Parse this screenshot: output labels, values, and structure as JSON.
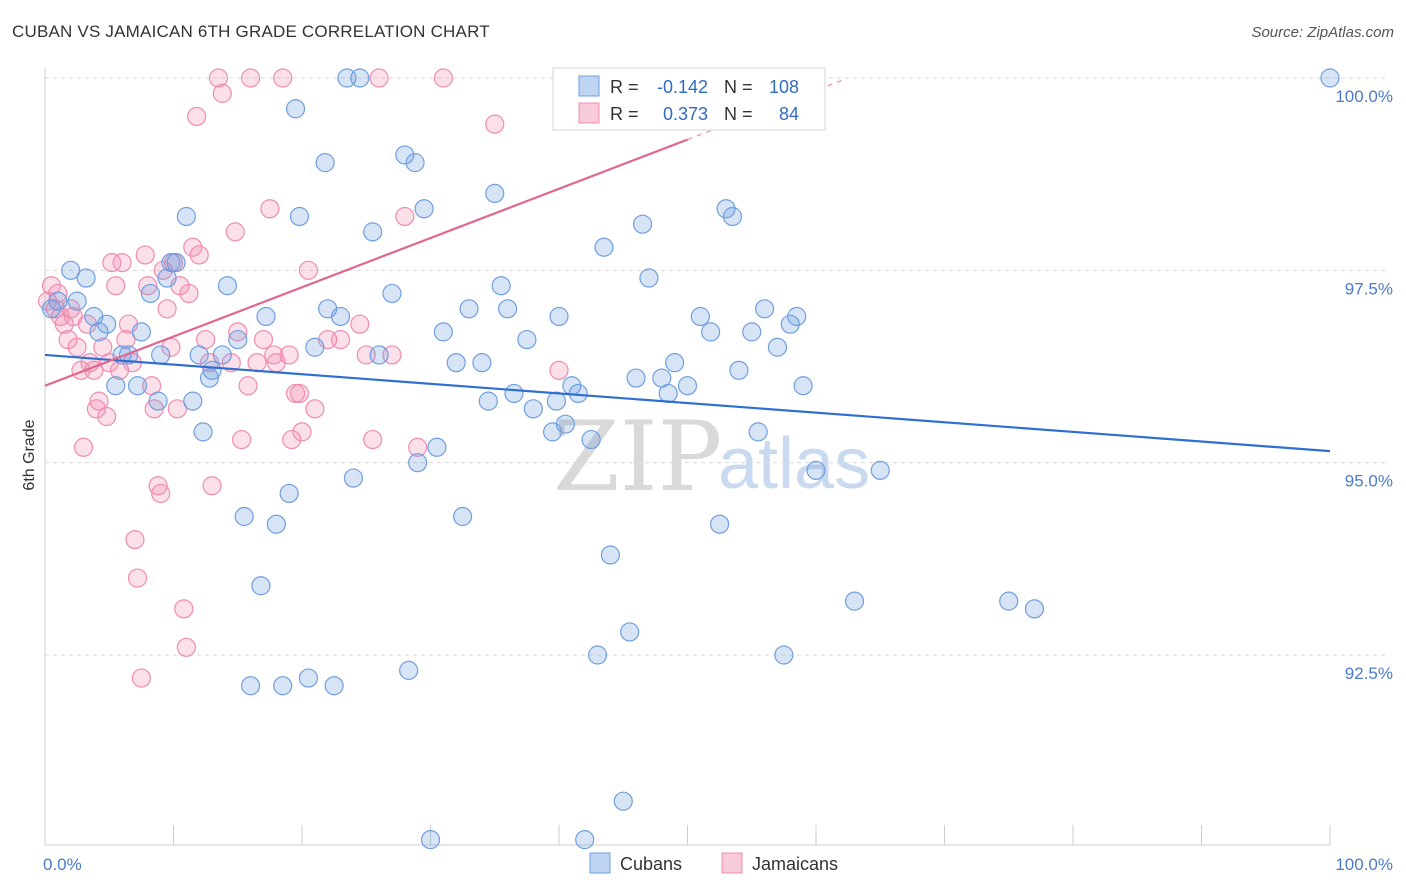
{
  "header": {
    "title": "CUBAN VS JAMAICAN 6TH GRADE CORRELATION CHART",
    "source": "Source: ZipAtlas.com"
  },
  "colors": {
    "cubans": "#6f9fe0",
    "cubans_line": "#2f6fd0",
    "jamaicans": "#f08cb0",
    "jamaicans_line": "#e06890",
    "axis_text": "#4a7cc9",
    "grid": "#d8d8d8"
  },
  "legend_box": {
    "row1": {
      "r_label": "R =",
      "r_value": "-0.142",
      "n_label": "N =",
      "n_value": "108"
    },
    "row2": {
      "r_label": "R =",
      "r_value": "0.373",
      "n_label": "N =",
      "n_value": "84"
    }
  },
  "watermark": {
    "zip": "ZIP",
    "atlas": "atlas"
  },
  "chart_data": {
    "type": "scatter",
    "title": "CUBAN VS JAMAICAN 6TH GRADE CORRELATION CHART",
    "xlabel": "",
    "ylabel": "6th Grade",
    "xlim": [
      0,
      100
    ],
    "ylim": [
      90.2,
      100.3
    ],
    "x_tick_labels": [
      "0.0%",
      "100.0%"
    ],
    "y_ticks": [
      92.5,
      95.0,
      97.5,
      100.0
    ],
    "y_tick_labels": [
      "92.5%",
      "95.0%",
      "97.5%",
      "100.0%"
    ],
    "grid": true,
    "legend": [
      "Cubans",
      "Jamaicans"
    ],
    "series": [
      {
        "name": "Cubans",
        "trend": {
          "x": [
            0,
            100
          ],
          "y": [
            96.4,
            95.15
          ]
        },
        "points": [
          [
            0.5,
            97.0
          ],
          [
            1.0,
            97.1
          ],
          [
            2.0,
            97.5
          ],
          [
            2.5,
            97.1
          ],
          [
            3.2,
            97.4
          ],
          [
            3.8,
            96.9
          ],
          [
            4.2,
            96.7
          ],
          [
            4.8,
            96.8
          ],
          [
            5.5,
            96.0
          ],
          [
            6.0,
            96.4
          ],
          [
            6.5,
            96.4
          ],
          [
            7.2,
            96.0
          ],
          [
            7.5,
            96.7
          ],
          [
            8.2,
            97.2
          ],
          [
            8.8,
            95.8
          ],
          [
            9.0,
            96.4
          ],
          [
            9.5,
            97.4
          ],
          [
            9.8,
            97.6
          ],
          [
            10.2,
            97.6
          ],
          [
            11.0,
            98.2
          ],
          [
            11.5,
            95.8
          ],
          [
            12.0,
            96.4
          ],
          [
            12.3,
            95.4
          ],
          [
            12.8,
            96.1
          ],
          [
            13.0,
            96.2
          ],
          [
            13.8,
            96.4
          ],
          [
            14.2,
            97.3
          ],
          [
            15.0,
            96.6
          ],
          [
            15.5,
            94.3
          ],
          [
            16.0,
            92.1
          ],
          [
            16.8,
            93.4
          ],
          [
            17.2,
            96.9
          ],
          [
            18.0,
            94.2
          ],
          [
            18.5,
            92.1
          ],
          [
            19.0,
            94.6
          ],
          [
            19.5,
            99.6
          ],
          [
            19.8,
            98.2
          ],
          [
            20.5,
            92.2
          ],
          [
            21.0,
            96.5
          ],
          [
            21.8,
            98.9
          ],
          [
            22.0,
            97.0
          ],
          [
            22.5,
            92.1
          ],
          [
            23.0,
            96.9
          ],
          [
            23.5,
            100.0
          ],
          [
            24.0,
            94.8
          ],
          [
            24.5,
            100.0
          ],
          [
            25.5,
            98.0
          ],
          [
            26.0,
            96.4
          ],
          [
            27.0,
            97.2
          ],
          [
            28.0,
            99.0
          ],
          [
            28.3,
            92.3
          ],
          [
            28.8,
            98.9
          ],
          [
            29.0,
            95.0
          ],
          [
            29.5,
            98.3
          ],
          [
            30.5,
            95.2
          ],
          [
            30.0,
            90.1
          ],
          [
            31.0,
            96.7
          ],
          [
            32.0,
            96.3
          ],
          [
            32.5,
            94.3
          ],
          [
            33.0,
            97.0
          ],
          [
            34.0,
            96.3
          ],
          [
            34.5,
            95.8
          ],
          [
            35.0,
            98.5
          ],
          [
            35.5,
            97.3
          ],
          [
            36.0,
            97.0
          ],
          [
            36.5,
            95.9
          ],
          [
            37.5,
            96.6
          ],
          [
            38.0,
            95.7
          ],
          [
            39.5,
            95.4
          ],
          [
            39.8,
            95.8
          ],
          [
            40.0,
            96.9
          ],
          [
            40.5,
            95.5
          ],
          [
            41.0,
            96.0
          ],
          [
            41.5,
            95.9
          ],
          [
            42.0,
            90.1
          ],
          [
            42.5,
            95.3
          ],
          [
            43.0,
            92.5
          ],
          [
            43.5,
            97.8
          ],
          [
            44.0,
            93.8
          ],
          [
            45.0,
            90.6
          ],
          [
            45.5,
            92.8
          ],
          [
            46.0,
            96.1
          ],
          [
            46.5,
            98.1
          ],
          [
            47.0,
            97.4
          ],
          [
            48.0,
            96.1
          ],
          [
            48.5,
            95.9
          ],
          [
            49.0,
            96.3
          ],
          [
            50.0,
            96.0
          ],
          [
            51.0,
            96.9
          ],
          [
            51.8,
            96.7
          ],
          [
            52.5,
            94.2
          ],
          [
            53.0,
            98.3
          ],
          [
            53.5,
            98.2
          ],
          [
            54.0,
            96.2
          ],
          [
            55.0,
            96.7
          ],
          [
            55.5,
            95.4
          ],
          [
            56.0,
            97.0
          ],
          [
            57.0,
            96.5
          ],
          [
            57.5,
            92.5
          ],
          [
            58.0,
            96.8
          ],
          [
            58.5,
            96.9
          ],
          [
            59.0,
            96.0
          ],
          [
            60.0,
            94.9
          ],
          [
            63.0,
            93.2
          ],
          [
            65.0,
            94.9
          ],
          [
            75.0,
            93.2
          ],
          [
            77.0,
            93.1
          ],
          [
            100.0,
            100.0
          ]
        ]
      },
      {
        "name": "Jamaicans",
        "trend": {
          "x": [
            0,
            50
          ],
          "y": [
            96.0,
            99.2
          ]
        },
        "points": [
          [
            0.2,
            97.1
          ],
          [
            0.5,
            97.3
          ],
          [
            0.8,
            97.0
          ],
          [
            1.0,
            97.2
          ],
          [
            1.2,
            96.9
          ],
          [
            1.5,
            96.8
          ],
          [
            1.8,
            96.6
          ],
          [
            2.0,
            97.0
          ],
          [
            2.2,
            96.9
          ],
          [
            2.5,
            96.5
          ],
          [
            2.8,
            96.2
          ],
          [
            3.0,
            95.2
          ],
          [
            3.3,
            96.8
          ],
          [
            3.5,
            96.3
          ],
          [
            3.8,
            96.2
          ],
          [
            4.0,
            95.7
          ],
          [
            4.2,
            95.8
          ],
          [
            4.5,
            96.5
          ],
          [
            4.8,
            95.6
          ],
          [
            5.0,
            96.3
          ],
          [
            5.2,
            97.6
          ],
          [
            5.5,
            97.3
          ],
          [
            5.8,
            96.2
          ],
          [
            6.0,
            97.6
          ],
          [
            6.3,
            96.6
          ],
          [
            6.5,
            96.8
          ],
          [
            6.8,
            96.3
          ],
          [
            7.0,
            94.0
          ],
          [
            7.2,
            93.5
          ],
          [
            7.5,
            92.2
          ],
          [
            7.8,
            97.7
          ],
          [
            8.0,
            97.3
          ],
          [
            8.3,
            96.0
          ],
          [
            8.5,
            95.7
          ],
          [
            8.8,
            94.7
          ],
          [
            9.0,
            94.6
          ],
          [
            9.2,
            97.5
          ],
          [
            9.5,
            97.0
          ],
          [
            9.8,
            96.5
          ],
          [
            10.0,
            97.6
          ],
          [
            10.3,
            95.7
          ],
          [
            10.5,
            97.3
          ],
          [
            10.8,
            93.1
          ],
          [
            11.0,
            92.6
          ],
          [
            11.2,
            97.2
          ],
          [
            11.5,
            97.8
          ],
          [
            11.8,
            99.5
          ],
          [
            12.0,
            97.7
          ],
          [
            12.5,
            96.6
          ],
          [
            12.8,
            96.3
          ],
          [
            13.0,
            94.7
          ],
          [
            13.5,
            100.0
          ],
          [
            13.8,
            99.8
          ],
          [
            14.5,
            96.3
          ],
          [
            14.8,
            98.0
          ],
          [
            15.0,
            96.7
          ],
          [
            15.3,
            95.3
          ],
          [
            15.8,
            96.0
          ],
          [
            16.0,
            100.0
          ],
          [
            16.5,
            96.3
          ],
          [
            17.0,
            96.6
          ],
          [
            17.5,
            98.3
          ],
          [
            17.8,
            96.4
          ],
          [
            18.0,
            96.3
          ],
          [
            18.5,
            100.0
          ],
          [
            19.0,
            96.4
          ],
          [
            19.2,
            95.3
          ],
          [
            19.5,
            95.9
          ],
          [
            19.8,
            95.9
          ],
          [
            20.0,
            95.4
          ],
          [
            20.5,
            97.5
          ],
          [
            21.0,
            95.7
          ],
          [
            22.0,
            96.6
          ],
          [
            23.0,
            96.6
          ],
          [
            24.5,
            96.8
          ],
          [
            25.0,
            96.4
          ],
          [
            25.5,
            95.3
          ],
          [
            26.0,
            100.0
          ],
          [
            27.0,
            96.4
          ],
          [
            28.0,
            98.2
          ],
          [
            29.0,
            95.2
          ],
          [
            31.0,
            100.0
          ],
          [
            35.0,
            99.4
          ],
          [
            40.0,
            96.2
          ]
        ]
      }
    ]
  },
  "bottom_legend": {
    "cubans": "Cubans",
    "jamaicans": "Jamaicans"
  }
}
